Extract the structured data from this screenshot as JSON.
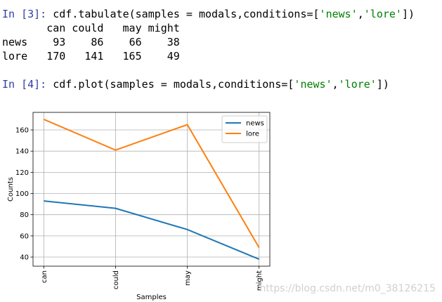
{
  "cells": [
    {
      "prompt": "In [3]:",
      "code": [
        "cdf.tabulate(samples = modals,conditions=[",
        "'news'",
        ",",
        "'lore'",
        "])"
      ],
      "output": {
        "header": [
          "can",
          "could",
          "may",
          "might"
        ],
        "rows": [
          {
            "label": "news",
            "values": [
              93,
              86,
              66,
              38
            ]
          },
          {
            "label": "lore",
            "values": [
              170,
              141,
              165,
              49
            ]
          }
        ]
      }
    },
    {
      "prompt": "In [4]:",
      "code": [
        "cdf.plot(samples = modals,conditions=[",
        "'news'",
        ",",
        "'lore'",
        "])"
      ]
    }
  ],
  "chart_data": {
    "type": "line",
    "xlabel": "Samples",
    "ylabel": "Counts",
    "categories": [
      "can",
      "could",
      "may",
      "might"
    ],
    "series": [
      {
        "name": "news",
        "color": "#1f77b4",
        "values": [
          93,
          86,
          66,
          38
        ]
      },
      {
        "name": "lore",
        "color": "#ff7f0e",
        "values": [
          170,
          141,
          165,
          49
        ]
      }
    ],
    "ylim": [
      31.4,
      176.6
    ],
    "yticks": [
      40,
      60,
      80,
      100,
      120,
      140,
      160
    ],
    "grid": true,
    "legend": "upper right"
  },
  "watermark": "https://blog.csdn.net/m0_38126215"
}
